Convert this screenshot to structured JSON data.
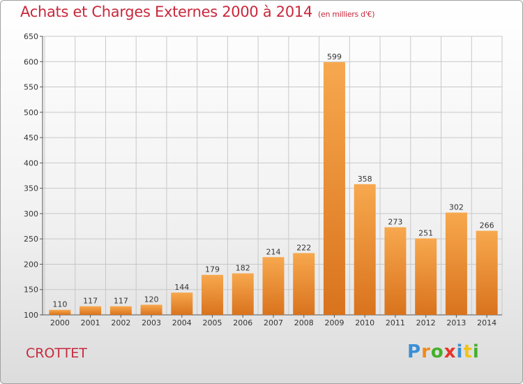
{
  "header": {
    "title": "Achats et Charges Externes 2000 à 2014",
    "subtitle": "(en milliers d'€)"
  },
  "footer": {
    "commune": "CROTTET",
    "logo_letters": [
      {
        "char": "P",
        "color": "#3a8fd6"
      },
      {
        "char": "r",
        "color": "#f08a1c"
      },
      {
        "char": "o",
        "color": "#43b02a"
      },
      {
        "char": "x",
        "color": "#e8332a"
      },
      {
        "char": "i",
        "color": "#3a8fd6"
      },
      {
        "char": "t",
        "color": "#f0c419"
      },
      {
        "char": "i",
        "color": "#43b02a"
      }
    ]
  },
  "colors": {
    "title": "#c8283c",
    "bar_light": "#f7a84e",
    "bar_dark": "#d9731d",
    "grid": "#c8c8c8"
  },
  "chart_data": {
    "type": "bar",
    "title": "Achats et Charges Externes 2000 à 2014",
    "subtitle": "(en milliers d'€)",
    "xlabel": "",
    "ylabel": "",
    "categories": [
      "2000",
      "2001",
      "2002",
      "2003",
      "2004",
      "2005",
      "2006",
      "2007",
      "2008",
      "2009",
      "2010",
      "2011",
      "2012",
      "2013",
      "2014"
    ],
    "values": [
      110,
      117,
      117,
      120,
      144,
      179,
      182,
      214,
      222,
      599,
      358,
      273,
      251,
      302,
      266
    ],
    "ylim": [
      100,
      650
    ],
    "yticks": [
      100,
      150,
      200,
      250,
      300,
      350,
      400,
      450,
      500,
      550,
      600,
      650
    ],
    "grid": true,
    "legend": "none"
  }
}
